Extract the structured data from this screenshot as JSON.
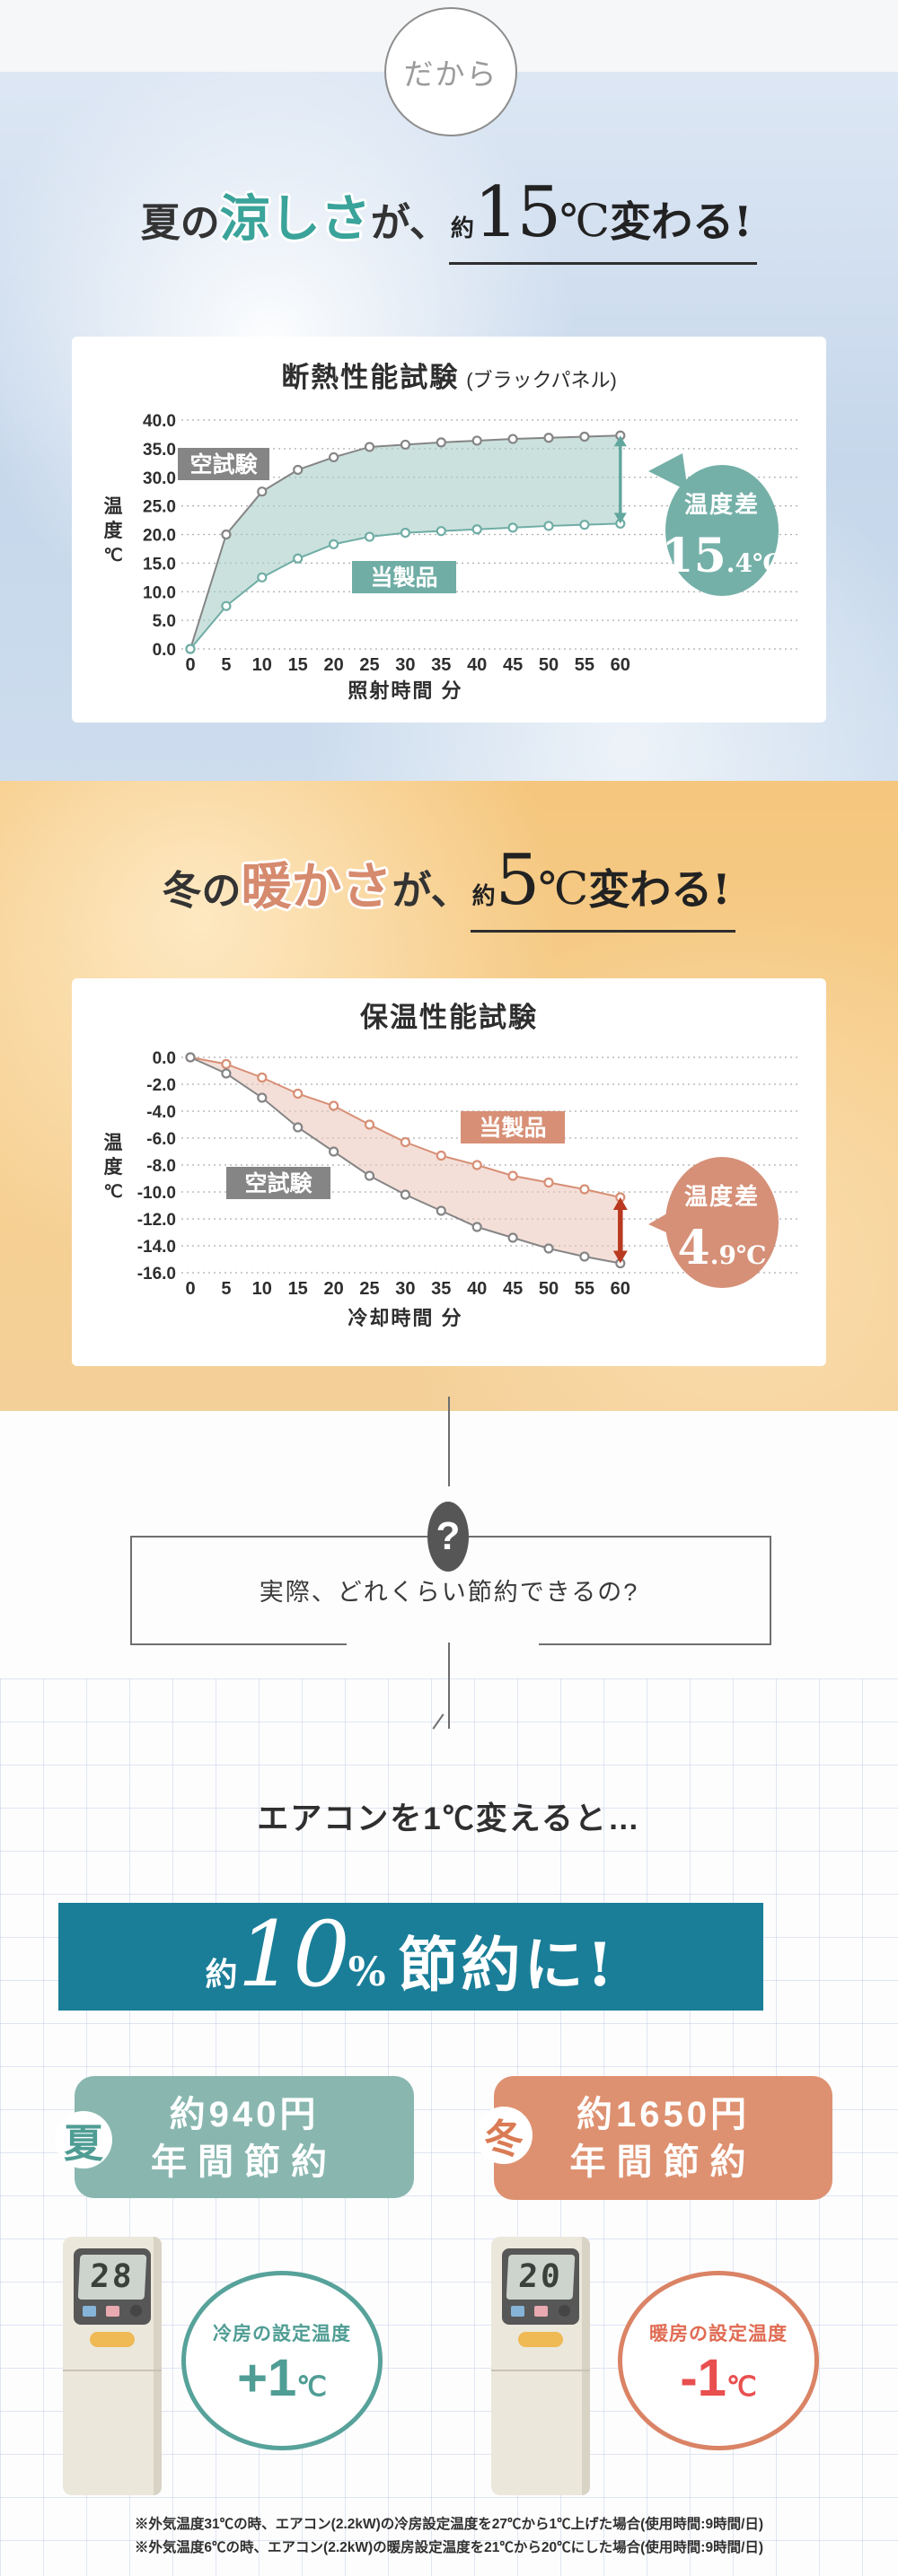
{
  "intro_badge": {
    "label": "だから"
  },
  "summer_heading": {
    "prefix": "夏の",
    "highlight": "涼しさ",
    "particle": "が、",
    "approx": "約",
    "value": "15",
    "unit": "℃",
    "suffix": "変わる!"
  },
  "winter_heading": {
    "prefix": "冬の",
    "highlight": "暖かさ",
    "particle": "が、",
    "approx": "約",
    "value": "5",
    "unit": "℃",
    "suffix": "変わる!"
  },
  "question": {
    "mark": "?",
    "text": "実際、どれくらい節約できるの?"
  },
  "savings": {
    "lead": "エアコンを1℃変えると…",
    "banner": {
      "approx": "約",
      "value": "10",
      "percent": "%",
      "suffix": "節約に!"
    },
    "summer_card": {
      "badge": "夏",
      "amount": "約940円",
      "label": "年間節約"
    },
    "winter_card": {
      "badge": "冬",
      "amount": "約1650円",
      "label": "年間節約"
    },
    "summer_detail": {
      "remote_display": "28",
      "label": "冷房の設定温度",
      "delta": "+1",
      "unit": "℃"
    },
    "winter_detail": {
      "remote_display": "20",
      "label": "暖房の設定温度",
      "delta": "-1",
      "unit": "℃"
    }
  },
  "footnotes": [
    "※外気温度31℃の時、エアコン(2.2kW)の冷房設定温度を27℃から1℃上げた場合(使用時間:9時間/日)",
    "※外気温度6℃の時、エアコン(2.2kW)の暖房設定温度を21℃から20℃にした場合(使用時間:9時間/日)"
  ],
  "chart_data": [
    {
      "type": "line",
      "title": "断熱性能試験",
      "title_note": "(ブラックパネル)",
      "xlabel": "照射時間 分",
      "ylabel": [
        "温",
        "度",
        "℃"
      ],
      "x": [
        0,
        5,
        10,
        15,
        20,
        25,
        30,
        35,
        40,
        45,
        50,
        55,
        60
      ],
      "ylim": [
        0,
        40
      ],
      "ystep": 5,
      "grid": true,
      "series": [
        {
          "name": "空試験",
          "color": "#858585",
          "values": [
            0,
            20,
            27.5,
            31.3,
            33.5,
            35.3,
            35.7,
            36.1,
            36.4,
            36.7,
            36.9,
            37.1,
            37.3
          ]
        },
        {
          "name": "当製品",
          "color": "#6fada5",
          "values": [
            0,
            7.5,
            12.5,
            15.8,
            18.3,
            19.6,
            20.3,
            20.6,
            20.9,
            21.2,
            21.5,
            21.7,
            21.9
          ]
        }
      ],
      "fill_between": "rgba(168,205,198,0.6)",
      "badge": {
        "label": "温度差",
        "value_int": "15",
        "value_frac": ".4",
        "unit": "℃",
        "color": "#74b0a8"
      },
      "arrow": {
        "x": 60,
        "from": 37.3,
        "to": 21.9,
        "color": "#62a79e"
      }
    },
    {
      "type": "line",
      "title": "保温性能試験",
      "title_note": "",
      "xlabel": "冷却時間 分",
      "ylabel": [
        "温",
        "度",
        "℃"
      ],
      "x": [
        0,
        5,
        10,
        15,
        20,
        25,
        30,
        35,
        40,
        45,
        50,
        55,
        60
      ],
      "ylim": [
        -16,
        0
      ],
      "ystep": 2,
      "grid": true,
      "series": [
        {
          "name": "当製品",
          "color": "#d78f75",
          "values": [
            0,
            -0.5,
            -1.5,
            -2.7,
            -3.6,
            -5.0,
            -6.3,
            -7.3,
            -8.0,
            -8.8,
            -9.3,
            -9.8,
            -10.4
          ]
        },
        {
          "name": "空試験",
          "color": "#858585",
          "values": [
            0,
            -1.2,
            -3.0,
            -5.2,
            -7.0,
            -8.8,
            -10.2,
            -11.4,
            -12.6,
            -13.4,
            -14.2,
            -14.8,
            -15.3
          ]
        }
      ],
      "fill_between": "rgba(235,197,184,0.55)",
      "badge": {
        "label": "温度差",
        "value_int": "4",
        "value_frac": ".9",
        "unit": "℃",
        "color": "#d69078"
      },
      "arrow": {
        "x": 60,
        "from": -10.4,
        "to": -15.3,
        "color": "#b93a20"
      }
    }
  ]
}
